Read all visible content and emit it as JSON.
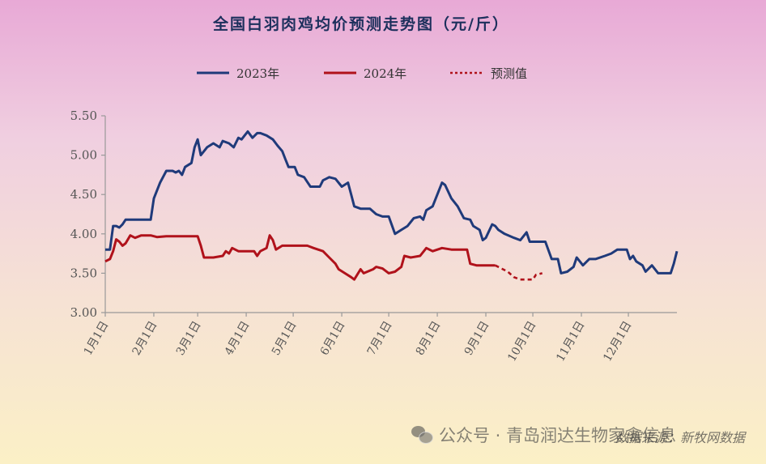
{
  "chart_data": {
    "type": "line",
    "title": "全国白羽肉鸡均价预测走势图（元/斤）",
    "legend": [
      "2023年",
      "2024年",
      "预测值"
    ],
    "legend_position": "top",
    "ylim": [
      3.0,
      5.5
    ],
    "yticks": [
      "3.00",
      "3.50",
      "4.00",
      "4.50",
      "5.00",
      "5.50"
    ],
    "xlim": [
      1,
      366
    ],
    "xticks": [
      {
        "label": "1月1日",
        "day": 1
      },
      {
        "label": "2月1日",
        "day": 32
      },
      {
        "label": "3月1日",
        "day": 60
      },
      {
        "label": "4月1日",
        "day": 91
      },
      {
        "label": "5月1日",
        "day": 121
      },
      {
        "label": "6月1日",
        "day": 152
      },
      {
        "label": "7月1日",
        "day": 182
      },
      {
        "label": "8月1日",
        "day": 213
      },
      {
        "label": "9月1日",
        "day": 244
      },
      {
        "label": "10月1日",
        "day": 274
      },
      {
        "label": "11月1日",
        "day": 305
      },
      {
        "label": "12月1日",
        "day": 335
      }
    ],
    "grid": false,
    "series": [
      {
        "name": "2023年",
        "color": "#1f3a7a",
        "style": "solid",
        "points": [
          [
            1,
            3.8
          ],
          [
            4,
            3.8
          ],
          [
            6,
            4.1
          ],
          [
            8,
            4.1
          ],
          [
            10,
            4.08
          ],
          [
            12,
            4.12
          ],
          [
            14,
            4.18
          ],
          [
            30,
            4.18
          ],
          [
            32,
            4.45
          ],
          [
            36,
            4.65
          ],
          [
            40,
            4.8
          ],
          [
            44,
            4.8
          ],
          [
            46,
            4.78
          ],
          [
            48,
            4.8
          ],
          [
            50,
            4.75
          ],
          [
            52,
            4.85
          ],
          [
            56,
            4.9
          ],
          [
            58,
            5.1
          ],
          [
            60,
            5.2
          ],
          [
            62,
            5.0
          ],
          [
            66,
            5.1
          ],
          [
            70,
            5.15
          ],
          [
            74,
            5.1
          ],
          [
            76,
            5.18
          ],
          [
            80,
            5.15
          ],
          [
            83,
            5.1
          ],
          [
            86,
            5.22
          ],
          [
            88,
            5.2
          ],
          [
            90,
            5.25
          ],
          [
            92,
            5.3
          ],
          [
            95,
            5.22
          ],
          [
            98,
            5.28
          ],
          [
            100,
            5.28
          ],
          [
            104,
            5.25
          ],
          [
            108,
            5.2
          ],
          [
            111,
            5.12
          ],
          [
            114,
            5.05
          ],
          [
            116,
            4.95
          ],
          [
            118,
            4.85
          ],
          [
            122,
            4.85
          ],
          [
            124,
            4.75
          ],
          [
            128,
            4.72
          ],
          [
            132,
            4.6
          ],
          [
            138,
            4.6
          ],
          [
            140,
            4.68
          ],
          [
            142,
            4.7
          ],
          [
            144,
            4.72
          ],
          [
            148,
            4.7
          ],
          [
            152,
            4.6
          ],
          [
            156,
            4.65
          ],
          [
            158,
            4.5
          ],
          [
            160,
            4.35
          ],
          [
            164,
            4.32
          ],
          [
            170,
            4.32
          ],
          [
            174,
            4.25
          ],
          [
            178,
            4.22
          ],
          [
            182,
            4.22
          ],
          [
            186,
            4.0
          ],
          [
            190,
            4.05
          ],
          [
            194,
            4.1
          ],
          [
            198,
            4.2
          ],
          [
            202,
            4.22
          ],
          [
            204,
            4.18
          ],
          [
            206,
            4.3
          ],
          [
            210,
            4.35
          ],
          [
            213,
            4.5
          ],
          [
            216,
            4.65
          ],
          [
            218,
            4.62
          ],
          [
            222,
            4.45
          ],
          [
            226,
            4.35
          ],
          [
            230,
            4.2
          ],
          [
            234,
            4.18
          ],
          [
            236,
            4.1
          ],
          [
            240,
            4.05
          ],
          [
            242,
            3.92
          ],
          [
            244,
            3.95
          ],
          [
            248,
            4.12
          ],
          [
            250,
            4.1
          ],
          [
            252,
            4.05
          ],
          [
            256,
            4.0
          ],
          [
            262,
            3.95
          ],
          [
            266,
            3.92
          ],
          [
            270,
            4.02
          ],
          [
            272,
            3.9
          ],
          [
            282,
            3.9
          ],
          [
            286,
            3.68
          ],
          [
            290,
            3.68
          ],
          [
            292,
            3.5
          ],
          [
            296,
            3.52
          ],
          [
            300,
            3.58
          ],
          [
            302,
            3.7
          ],
          [
            304,
            3.65
          ],
          [
            306,
            3.6
          ],
          [
            310,
            3.68
          ],
          [
            314,
            3.68
          ],
          [
            320,
            3.72
          ],
          [
            324,
            3.75
          ],
          [
            328,
            3.8
          ],
          [
            334,
            3.8
          ],
          [
            336,
            3.68
          ],
          [
            338,
            3.72
          ],
          [
            340,
            3.65
          ],
          [
            344,
            3.6
          ],
          [
            346,
            3.52
          ],
          [
            350,
            3.6
          ],
          [
            354,
            3.5
          ],
          [
            362,
            3.5
          ],
          [
            364,
            3.62
          ],
          [
            366,
            3.78
          ]
        ]
      },
      {
        "name": "2024年",
        "color": "#b0121b",
        "style": "solid",
        "points": [
          [
            1,
            3.65
          ],
          [
            4,
            3.68
          ],
          [
            6,
            3.78
          ],
          [
            8,
            3.93
          ],
          [
            10,
            3.9
          ],
          [
            12,
            3.85
          ],
          [
            14,
            3.88
          ],
          [
            17,
            3.98
          ],
          [
            20,
            3.95
          ],
          [
            24,
            3.98
          ],
          [
            30,
            3.98
          ],
          [
            34,
            3.96
          ],
          [
            40,
            3.97
          ],
          [
            60,
            3.97
          ],
          [
            62,
            3.85
          ],
          [
            64,
            3.7
          ],
          [
            70,
            3.7
          ],
          [
            76,
            3.72
          ],
          [
            78,
            3.78
          ],
          [
            80,
            3.75
          ],
          [
            82,
            3.82
          ],
          [
            86,
            3.78
          ],
          [
            96,
            3.78
          ],
          [
            98,
            3.72
          ],
          [
            100,
            3.78
          ],
          [
            104,
            3.82
          ],
          [
            106,
            3.98
          ],
          [
            108,
            3.92
          ],
          [
            110,
            3.8
          ],
          [
            114,
            3.85
          ],
          [
            130,
            3.85
          ],
          [
            134,
            3.82
          ],
          [
            140,
            3.78
          ],
          [
            144,
            3.7
          ],
          [
            148,
            3.62
          ],
          [
            150,
            3.55
          ],
          [
            154,
            3.5
          ],
          [
            158,
            3.45
          ],
          [
            160,
            3.42
          ],
          [
            164,
            3.55
          ],
          [
            166,
            3.5
          ],
          [
            172,
            3.55
          ],
          [
            174,
            3.58
          ],
          [
            178,
            3.56
          ],
          [
            182,
            3.5
          ],
          [
            186,
            3.52
          ],
          [
            190,
            3.58
          ],
          [
            192,
            3.72
          ],
          [
            196,
            3.7
          ],
          [
            202,
            3.72
          ],
          [
            206,
            3.82
          ],
          [
            210,
            3.78
          ],
          [
            216,
            3.82
          ],
          [
            222,
            3.8
          ],
          [
            232,
            3.8
          ],
          [
            234,
            3.62
          ],
          [
            238,
            3.6
          ],
          [
            250,
            3.6
          ]
        ]
      },
      {
        "name": "预测值",
        "color": "#b0121b",
        "style": "dashed",
        "points": [
          [
            250,
            3.6
          ],
          [
            258,
            3.52
          ],
          [
            262,
            3.45
          ],
          [
            266,
            3.42
          ],
          [
            274,
            3.42
          ],
          [
            276,
            3.48
          ],
          [
            280,
            3.5
          ]
        ]
      }
    ]
  },
  "watermark": {
    "icon": "wechat-icon",
    "text": "公众号 · 青岛润达生物家禽信息",
    "source": "数据来源：新牧网数据"
  }
}
